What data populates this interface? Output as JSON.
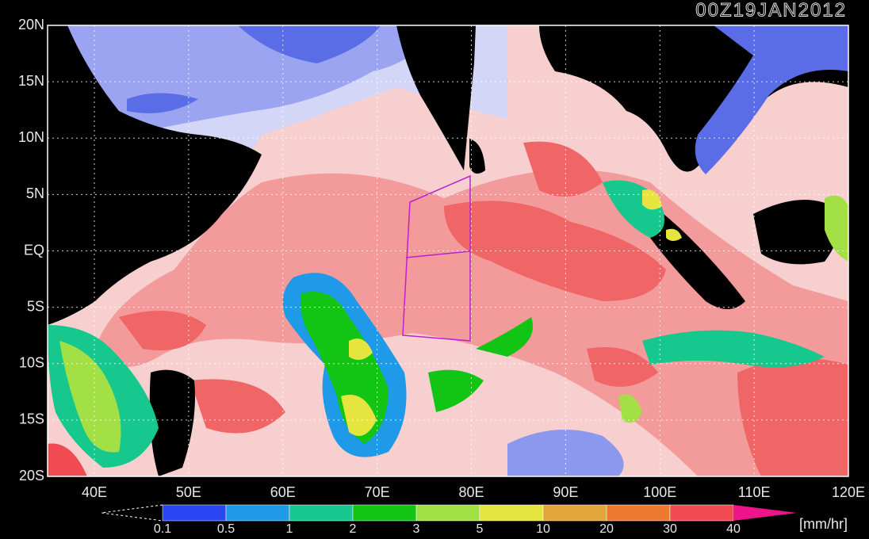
{
  "header": {
    "timestamp": "00Z19JAN2012"
  },
  "map": {
    "lat_labels": [
      "20N",
      "15N",
      "10N",
      "5N",
      "EQ",
      "5S",
      "10S",
      "15S",
      "20S"
    ],
    "lon_labels": [
      "40E",
      "50E",
      "60E",
      "70E",
      "80E",
      "90E",
      "100E",
      "110E",
      "120E"
    ]
  },
  "colorbar": {
    "levels": [
      0.1,
      0.5,
      1,
      2,
      3,
      5,
      10,
      20,
      30,
      40
    ],
    "colors": [
      "#2a46f2",
      "#1e9ae8",
      "#16c88e",
      "#12c414",
      "#a2e046",
      "#e6e43e",
      "#e4a43c",
      "#ee7a32",
      "#f04a52"
    ],
    "over_color": "#f0148c",
    "unit": "[mm/hr]"
  }
}
